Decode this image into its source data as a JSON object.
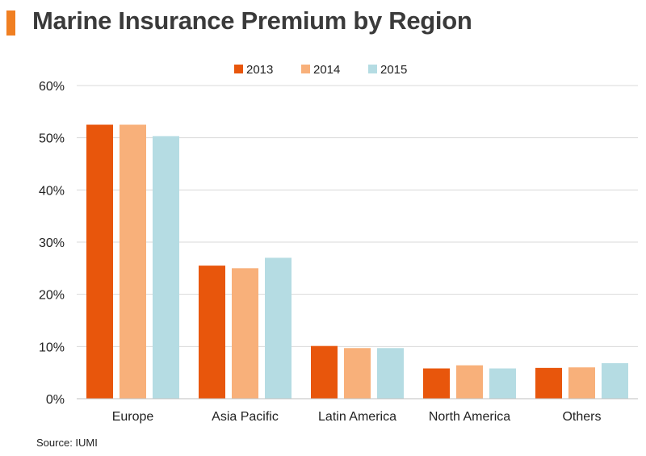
{
  "header": {
    "title": "Marine Insurance Premium by Region"
  },
  "footer": {
    "source": "Source: IUMI"
  },
  "chart_data": {
    "type": "bar",
    "title": "Marine Insurance Premium by Region",
    "categories": [
      "Europe",
      "Asia Pacific",
      "Latin America",
      "North America",
      "Others"
    ],
    "series": [
      {
        "name": "2013",
        "color": "#e8560c",
        "values": [
          52.5,
          25.5,
          10.1,
          5.8,
          5.9
        ]
      },
      {
        "name": "2014",
        "color": "#f8b07a",
        "values": [
          52.5,
          25.0,
          9.7,
          6.4,
          6.0
        ]
      },
      {
        "name": "2015",
        "color": "#b5dce3",
        "values": [
          50.3,
          27.0,
          9.7,
          5.8,
          6.8
        ]
      }
    ],
    "ylim": [
      0,
      60
    ],
    "yticks": [
      0,
      10,
      20,
      30,
      40,
      50,
      60
    ],
    "ytick_labels": [
      "0%",
      "10%",
      "20%",
      "30%",
      "40%",
      "50%",
      "60%"
    ],
    "grid": true,
    "legend_position": "top-center"
  }
}
